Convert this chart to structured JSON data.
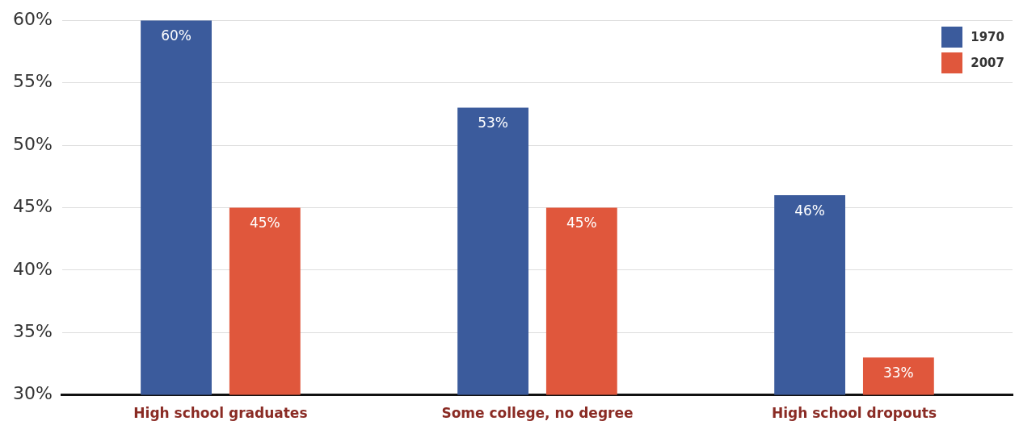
{
  "chart_data": {
    "type": "bar",
    "categories": [
      "High school graduates",
      "Some college, no degree",
      "High school dropouts"
    ],
    "series": [
      {
        "name": "1970",
        "color": "#3b5b9c",
        "values": [
          60,
          53,
          46
        ],
        "value_labels": [
          "60%",
          "53%",
          "46%"
        ]
      },
      {
        "name": "2007",
        "color": "#e0573c",
        "values": [
          45,
          45,
          33
        ],
        "value_labels": [
          "45%",
          "45%",
          "33%"
        ]
      }
    ],
    "ylim": [
      30,
      60
    ],
    "yticks": [
      {
        "value": 30,
        "label": "30%"
      },
      {
        "value": 35,
        "label": "35%"
      },
      {
        "value": 40,
        "label": "40%"
      },
      {
        "value": 45,
        "label": "45%"
      },
      {
        "value": 50,
        "label": "50%"
      },
      {
        "value": 55,
        "label": "55%"
      },
      {
        "value": 60,
        "label": "60%"
      }
    ],
    "grid": "y",
    "legend": "top right"
  }
}
